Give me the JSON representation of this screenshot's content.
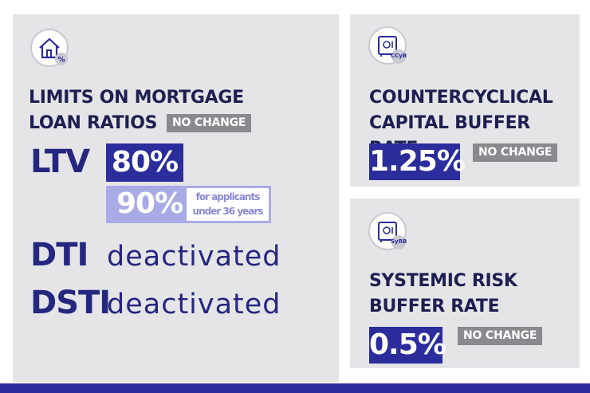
{
  "mortgage": {
    "icon": "house-percent-icon",
    "heading_line1": "LIMITS ON MORTGAGE",
    "heading_line2": "LOAN RATIOS",
    "badge": "NO CHANGE",
    "ltv": {
      "label": "LTV",
      "value": "80%",
      "young_value": "90%",
      "young_note_line1": "for applicants",
      "young_note_line2": "under 36 years"
    },
    "dti": {
      "label": "DTI",
      "status": "deactivated"
    },
    "dsti": {
      "label": "DSTI",
      "status": "deactivated"
    }
  },
  "ccyb": {
    "icon": "safe-icon",
    "icon_tag": "CCyB",
    "heading_line1": "COUNTERCYCLICAL",
    "heading_line2": "CAPITAL BUFFER RATE",
    "value": "1.25%",
    "badge": "NO CHANGE"
  },
  "syrb": {
    "icon": "safe-icon",
    "icon_tag": "SyRB",
    "heading_line1": "SYSTEMIC RISK",
    "heading_line2": "BUFFER RATE",
    "value": "0.5%",
    "badge": "NO CHANGE"
  },
  "colors": {
    "dark_blue": "#2b2d9c",
    "light_blue": "#a9abe6",
    "panel_gray": "#e5e5e8",
    "badge_gray": "#8a8a8e"
  }
}
